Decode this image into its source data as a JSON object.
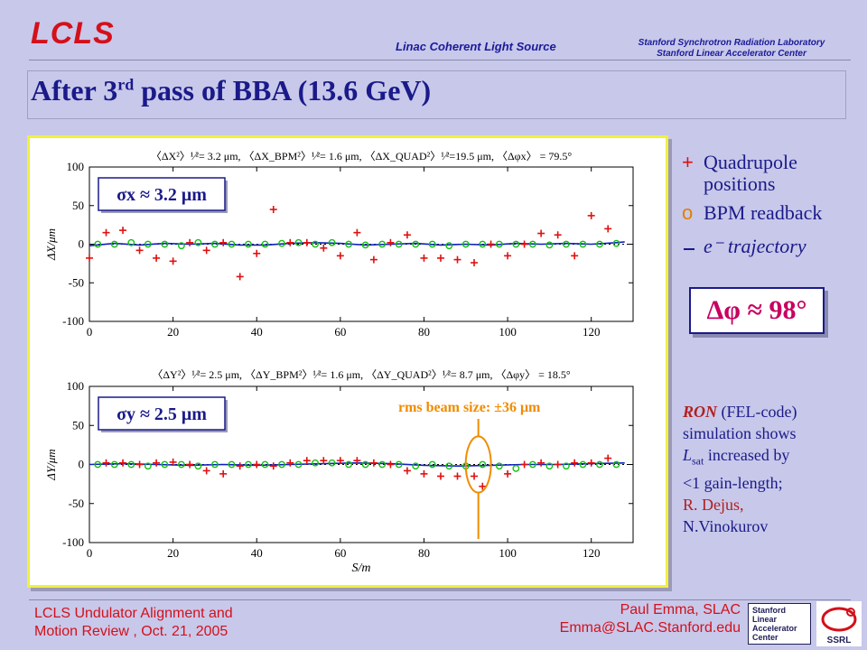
{
  "header": {
    "logo": "LCLS",
    "subtitle": "Linac Coherent Light Source",
    "lab_line1": "Stanford Synchrotron Radiation Laboratory",
    "lab_line2": "Stanford Linear Accelerator Center"
  },
  "slide": {
    "title_prefix": "After 3",
    "title_sup": "rd",
    "title_suffix": " pass of BBA (13.6 GeV)"
  },
  "legend": {
    "quad_symbol": "+",
    "quad_label_1": "Quadrupole",
    "quad_label_2": "positions",
    "bpm_symbol": "o",
    "bpm_label": "BPM readback",
    "traj_label": "e⁻ trajectory"
  },
  "phase_box": "Δφ ≈ 98°",
  "ron": {
    "ron_word": "RON",
    "line1_rest": " (FEL-code)",
    "line2": "simulation shows",
    "line3_pre": "L",
    "line3_sub": "sat",
    "line3_rest": " increased by",
    "line4": "<1 gain-length;",
    "line5": "R. Dejus,",
    "line6": "N.Vinokurov"
  },
  "footer": {
    "left_1": "LCLS Undulator Alignment and",
    "left_2": "Motion Review , Oct. 21, 2005",
    "right_1": "Paul Emma, SLAC",
    "right_2": "Emma@SLAC.Stanford.edu",
    "slac_logo_1": "Stanford",
    "slac_logo_2": "Linear",
    "slac_logo_3": "Accelerator",
    "slac_logo_4": "Center",
    "ssrl_logo": "SSRL"
  },
  "colors": {
    "quad": "#e01010",
    "bpm": "#10c010",
    "trajectory": "#1020c0",
    "annotation": "#f08c00",
    "text": "#1a1a8a"
  },
  "chart_data": [
    {
      "type": "scatter",
      "name": "x-plane",
      "stats": "〈ΔX²〉¹⁄²= 3.2 μm, 〈ΔX_BPM²〉¹⁄²= 1.6 μm, 〈ΔX_QUAD²〉¹⁄²=19.5 μm, 〈Δφx〉 = 79.5°",
      "ylabel": "ΔX/μm",
      "xlabel": "",
      "xlim": [
        0,
        130
      ],
      "ylim": [
        -100,
        100
      ],
      "xticks": [
        0,
        20,
        40,
        60,
        80,
        100,
        120
      ],
      "yticks": [
        100,
        50,
        0,
        -50,
        -100
      ],
      "sigma_label": "σx ≈ 3.2 μm",
      "quad": [
        [
          0,
          -18
        ],
        [
          4,
          15
        ],
        [
          8,
          18
        ],
        [
          12,
          -8
        ],
        [
          16,
          -18
        ],
        [
          20,
          -22
        ],
        [
          24,
          2
        ],
        [
          28,
          -8
        ],
        [
          32,
          2
        ],
        [
          36,
          -42
        ],
        [
          40,
          -12
        ],
        [
          44,
          45
        ],
        [
          48,
          2
        ],
        [
          52,
          2
        ],
        [
          56,
          -5
        ],
        [
          60,
          -15
        ],
        [
          64,
          15
        ],
        [
          68,
          -20
        ],
        [
          72,
          2
        ],
        [
          76,
          12
        ],
        [
          80,
          -18
        ],
        [
          84,
          -18
        ],
        [
          88,
          -20
        ],
        [
          92,
          -24
        ],
        [
          96,
          0
        ],
        [
          100,
          -15
        ],
        [
          104,
          0
        ],
        [
          108,
          14
        ],
        [
          112,
          12
        ],
        [
          116,
          -15
        ],
        [
          120,
          37
        ],
        [
          124,
          20
        ]
      ],
      "bpm": [
        [
          2,
          0
        ],
        [
          6,
          0
        ],
        [
          10,
          2
        ],
        [
          14,
          0
        ],
        [
          18,
          0
        ],
        [
          22,
          -2
        ],
        [
          26,
          2
        ],
        [
          30,
          0
        ],
        [
          34,
          0
        ],
        [
          38,
          0
        ],
        [
          42,
          0
        ],
        [
          46,
          1
        ],
        [
          50,
          2
        ],
        [
          54,
          0
        ],
        [
          58,
          2
        ],
        [
          62,
          0
        ],
        [
          66,
          -1
        ],
        [
          70,
          0
        ],
        [
          74,
          0
        ],
        [
          78,
          0
        ],
        [
          82,
          0
        ],
        [
          86,
          -2
        ],
        [
          90,
          0
        ],
        [
          94,
          0
        ],
        [
          98,
          0
        ],
        [
          102,
          0
        ],
        [
          106,
          0
        ],
        [
          110,
          -1
        ],
        [
          114,
          0
        ],
        [
          118,
          0
        ],
        [
          122,
          0
        ],
        [
          126,
          1
        ]
      ],
      "trajectory": [
        [
          0,
          -2
        ],
        [
          6,
          1
        ],
        [
          12,
          -1
        ],
        [
          18,
          1
        ],
        [
          24,
          0
        ],
        [
          30,
          1
        ],
        [
          36,
          -1
        ],
        [
          42,
          -1
        ],
        [
          48,
          1
        ],
        [
          54,
          2
        ],
        [
          60,
          1
        ],
        [
          66,
          -1
        ],
        [
          72,
          0
        ],
        [
          78,
          1
        ],
        [
          84,
          -1
        ],
        [
          90,
          0
        ],
        [
          96,
          -1
        ],
        [
          102,
          1
        ],
        [
          108,
          0
        ],
        [
          114,
          1
        ],
        [
          120,
          0
        ],
        [
          126,
          2
        ],
        [
          128,
          3
        ]
      ]
    },
    {
      "type": "scatter",
      "name": "y-plane",
      "stats": "〈ΔY²〉¹⁄²= 2.5 μm, 〈ΔY_BPM²〉¹⁄²= 1.6 μm, 〈ΔY_QUAD²〉¹⁄²= 8.7 μm, 〈Δφy〉 = 18.5°",
      "ylabel": "ΔY/μm",
      "xlabel": "S/m",
      "xlim": [
        0,
        130
      ],
      "ylim": [
        -100,
        100
      ],
      "xticks": [
        0,
        20,
        40,
        60,
        80,
        100,
        120
      ],
      "yticks": [
        100,
        50,
        0,
        -50,
        -100
      ],
      "sigma_label": "σy ≈ 2.5 μm",
      "annotation": "rms beam size:  ±36 μm",
      "quad": [
        [
          4,
          2
        ],
        [
          8,
          2
        ],
        [
          12,
          0
        ],
        [
          16,
          2
        ],
        [
          20,
          3
        ],
        [
          24,
          0
        ],
        [
          28,
          -8
        ],
        [
          32,
          -12
        ],
        [
          36,
          -2
        ],
        [
          40,
          0
        ],
        [
          44,
          -2
        ],
        [
          48,
          2
        ],
        [
          52,
          5
        ],
        [
          56,
          5
        ],
        [
          60,
          5
        ],
        [
          64,
          5
        ],
        [
          68,
          2
        ],
        [
          72,
          0
        ],
        [
          76,
          -8
        ],
        [
          80,
          -12
        ],
        [
          84,
          -15
        ],
        [
          88,
          -15
        ],
        [
          92,
          -15
        ],
        [
          94,
          -28
        ],
        [
          100,
          -12
        ],
        [
          104,
          0
        ],
        [
          108,
          2
        ],
        [
          112,
          0
        ],
        [
          116,
          2
        ],
        [
          120,
          2
        ],
        [
          124,
          8
        ]
      ],
      "bpm": [
        [
          2,
          0
        ],
        [
          6,
          0
        ],
        [
          10,
          0
        ],
        [
          14,
          -2
        ],
        [
          18,
          0
        ],
        [
          22,
          0
        ],
        [
          26,
          -2
        ],
        [
          30,
          0
        ],
        [
          34,
          0
        ],
        [
          38,
          0
        ],
        [
          42,
          0
        ],
        [
          46,
          0
        ],
        [
          50,
          0
        ],
        [
          54,
          2
        ],
        [
          58,
          2
        ],
        [
          62,
          0
        ],
        [
          66,
          0
        ],
        [
          70,
          0
        ],
        [
          74,
          0
        ],
        [
          78,
          -2
        ],
        [
          82,
          0
        ],
        [
          86,
          -2
        ],
        [
          90,
          -2
        ],
        [
          94,
          0
        ],
        [
          98,
          -2
        ],
        [
          102,
          -5
        ],
        [
          106,
          0
        ],
        [
          110,
          -2
        ],
        [
          114,
          -2
        ],
        [
          118,
          0
        ],
        [
          122,
          0
        ],
        [
          126,
          0
        ]
      ],
      "trajectory": [
        [
          0,
          0
        ],
        [
          8,
          1
        ],
        [
          16,
          0
        ],
        [
          24,
          -1
        ],
        [
          32,
          0
        ],
        [
          40,
          -1
        ],
        [
          48,
          0
        ],
        [
          56,
          1
        ],
        [
          64,
          2
        ],
        [
          72,
          1
        ],
        [
          80,
          -1
        ],
        [
          88,
          -2
        ],
        [
          96,
          -1
        ],
        [
          104,
          0
        ],
        [
          112,
          0
        ],
        [
          120,
          1
        ],
        [
          128,
          2
        ]
      ]
    }
  ]
}
